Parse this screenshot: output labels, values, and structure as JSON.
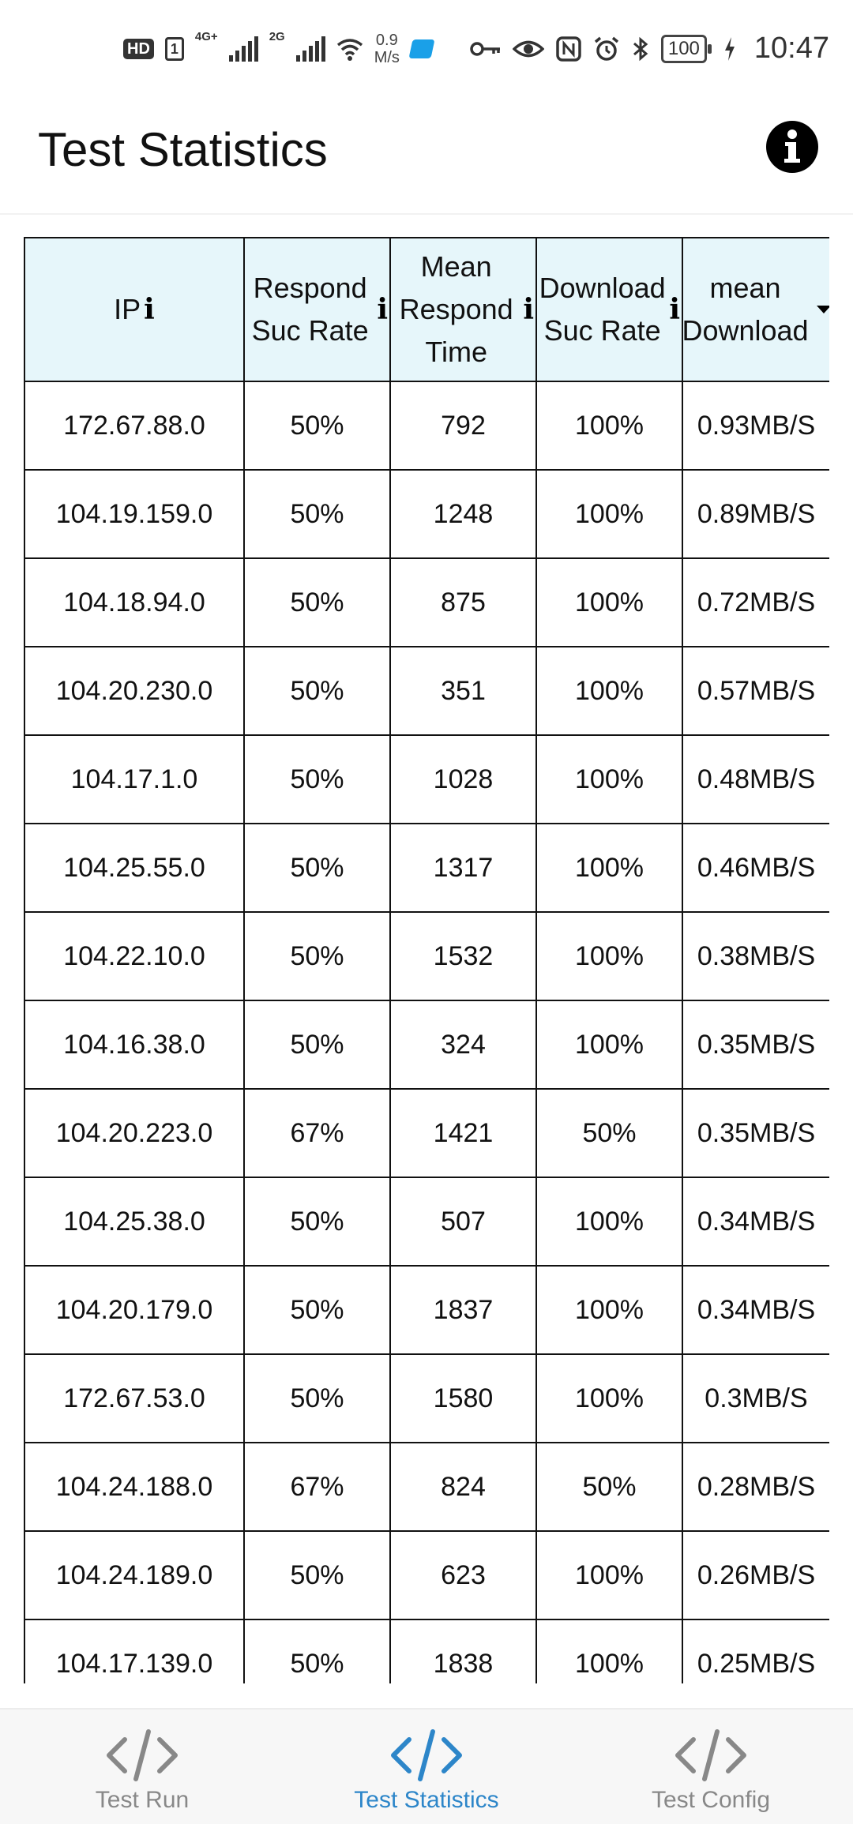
{
  "status_bar": {
    "hd": "HD",
    "sim": "1",
    "net1": "4G+",
    "net2": "2G",
    "speed_value": "0.9",
    "speed_unit": "M/s",
    "battery": "100",
    "time": "10:47"
  },
  "header": {
    "title": "Test Statistics",
    "info_icon": "info-icon"
  },
  "table": {
    "columns": [
      {
        "label": "IP",
        "has_info": true
      },
      {
        "label": "Respond Suc Rate",
        "has_info": true
      },
      {
        "label": "Mean Respond Time",
        "has_info": true
      },
      {
        "label": "Download Suc Rate",
        "has_info": true
      },
      {
        "label": "mean Download",
        "has_sort": true
      }
    ],
    "rows": [
      [
        "172.67.88.0",
        "50%",
        "792",
        "100%",
        "0.93MB/S"
      ],
      [
        "104.19.159.0",
        "50%",
        "1248",
        "100%",
        "0.89MB/S"
      ],
      [
        "104.18.94.0",
        "50%",
        "875",
        "100%",
        "0.72MB/S"
      ],
      [
        "104.20.230.0",
        "50%",
        "351",
        "100%",
        "0.57MB/S"
      ],
      [
        "104.17.1.0",
        "50%",
        "1028",
        "100%",
        "0.48MB/S"
      ],
      [
        "104.25.55.0",
        "50%",
        "1317",
        "100%",
        "0.46MB/S"
      ],
      [
        "104.22.10.0",
        "50%",
        "1532",
        "100%",
        "0.38MB/S"
      ],
      [
        "104.16.38.0",
        "50%",
        "324",
        "100%",
        "0.35MB/S"
      ],
      [
        "104.20.223.0",
        "67%",
        "1421",
        "50%",
        "0.35MB/S"
      ],
      [
        "104.25.38.0",
        "50%",
        "507",
        "100%",
        "0.34MB/S"
      ],
      [
        "104.20.179.0",
        "50%",
        "1837",
        "100%",
        "0.34MB/S"
      ],
      [
        "172.67.53.0",
        "50%",
        "1580",
        "100%",
        "0.3MB/S"
      ],
      [
        "104.24.188.0",
        "67%",
        "824",
        "50%",
        "0.28MB/S"
      ],
      [
        "104.24.189.0",
        "50%",
        "623",
        "100%",
        "0.26MB/S"
      ],
      [
        "104.17.139.0",
        "50%",
        "1838",
        "100%",
        "0.25MB/S"
      ]
    ]
  },
  "bottom_nav": {
    "items": [
      {
        "label": "Test Run",
        "icon": "code-icon",
        "active": false
      },
      {
        "label": "Test Statistics",
        "icon": "code-icon",
        "active": true
      },
      {
        "label": "Test Config",
        "icon": "code-icon",
        "active": false
      }
    ]
  },
  "colors": {
    "accent": "#2d86c9",
    "header_bg": "#e6f6fa",
    "inactive": "#888888"
  }
}
